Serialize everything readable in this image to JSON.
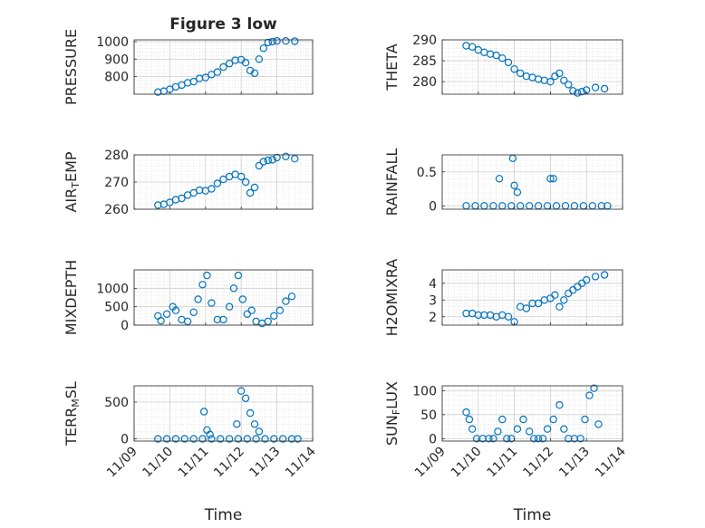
{
  "chart_data": [
    {
      "type": "scatter",
      "title": "Figure 3 low",
      "ylabel": "PRESSURE",
      "ylim": [
        700,
        1010
      ],
      "yticks": [
        800,
        900,
        1000
      ],
      "xlim": [
        "11/09",
        "11/14"
      ],
      "x": [
        "11/09 16:00",
        "11/09 20:00",
        "11/10 00:00",
        "11/10 04:00",
        "11/10 08:00",
        "11/10 12:00",
        "11/10 16:00",
        "11/10 20:00",
        "11/11 00:00",
        "11/11 04:00",
        "11/11 08:00",
        "11/11 12:00",
        "11/11 16:00",
        "11/11 20:00",
        "11/12 00:00",
        "11/12 03:00",
        "11/12 06:00",
        "11/12 09:00",
        "11/12 12:00",
        "11/12 15:00",
        "11/12 18:00",
        "11/12 21:00",
        "11/13 00:00",
        "11/13 06:00",
        "11/13 12:00"
      ],
      "y": [
        712,
        717,
        728,
        742,
        752,
        765,
        772,
        790,
        795,
        812,
        826,
        855,
        875,
        893,
        897,
        880,
        835,
        820,
        900,
        962,
        995,
        1000,
        1004,
        1004,
        1002
      ],
      "color": "#0072BD"
    },
    {
      "type": "scatter",
      "ylabel": "THETA",
      "ylim": [
        277,
        290
      ],
      "yticks": [
        280,
        285,
        290
      ],
      "xlim": [
        "11/09",
        "11/14"
      ],
      "x": [
        "11/09 16:00",
        "11/09 20:00",
        "11/10 00:00",
        "11/10 04:00",
        "11/10 08:00",
        "11/10 12:00",
        "11/10 16:00",
        "11/10 20:00",
        "11/11 00:00",
        "11/11 04:00",
        "11/11 08:00",
        "11/11 12:00",
        "11/11 16:00",
        "11/11 20:00",
        "11/12 00:00",
        "11/12 03:00",
        "11/12 06:00",
        "11/12 09:00",
        "11/12 12:00",
        "11/12 15:00",
        "11/12 18:00",
        "11/12 21:00",
        "11/13 00:00",
        "11/13 06:00",
        "11/13 12:00"
      ],
      "y": [
        288.6,
        288.3,
        287.6,
        287.0,
        286.6,
        286.3,
        285.6,
        284.6,
        283.0,
        282.0,
        281.3,
        281.0,
        280.6,
        280.3,
        280.0,
        281.3,
        282.0,
        280.3,
        279.3,
        277.8,
        277.3,
        277.6,
        278.0,
        278.6,
        278.3
      ],
      "color": "#0072BD"
    },
    {
      "type": "scatter",
      "ylabel": "AIR_TEMP",
      "ylim": [
        260,
        280
      ],
      "yticks": [
        260,
        270,
        280
      ],
      "xlim": [
        "11/09",
        "11/14"
      ],
      "x": [
        "11/09 16:00",
        "11/09 20:00",
        "11/10 00:00",
        "11/10 04:00",
        "11/10 08:00",
        "11/10 12:00",
        "11/10 16:00",
        "11/10 20:00",
        "11/11 00:00",
        "11/11 04:00",
        "11/11 08:00",
        "11/11 12:00",
        "11/11 16:00",
        "11/11 20:00",
        "11/12 00:00",
        "11/12 03:00",
        "11/12 06:00",
        "11/12 09:00",
        "11/12 12:00",
        "11/12 15:00",
        "11/12 18:00",
        "11/12 21:00",
        "11/13 00:00",
        "11/13 06:00",
        "11/13 12:00"
      ],
      "y": [
        261.5,
        261.8,
        262.5,
        263.5,
        264.0,
        265.2,
        266.0,
        267.0,
        266.8,
        267.5,
        269.5,
        271.0,
        272.0,
        272.8,
        272.0,
        270.0,
        266.0,
        268.0,
        276.0,
        277.5,
        278.0,
        278.2,
        279.0,
        279.4,
        278.6
      ],
      "color": "#0072BD"
    },
    {
      "type": "scatter",
      "ylabel": "RAINFALL",
      "ylim": [
        -0.05,
        0.75
      ],
      "yticks": [
        0,
        0.5
      ],
      "xlim": [
        "11/09",
        "11/14"
      ],
      "x": [
        "11/09 16:00",
        "11/09 22:00",
        "11/10 04:00",
        "11/10 10:00",
        "11/10 16:00",
        "11/10 22:00",
        "11/11 04:00",
        "11/11 10:00",
        "11/11 16:00",
        "11/11 22:00",
        "11/12 04:00",
        "11/12 10:00",
        "11/12 16:00",
        "11/12 22:00",
        "11/13 04:00",
        "11/13 10:00",
        "11/13 14:00",
        "11/10 14:00",
        "11/10 23:00",
        "11/11 00:00",
        "11/11 02:00",
        "11/12 00:00",
        "11/12 02:00"
      ],
      "y": [
        0,
        0,
        0,
        0,
        0,
        0,
        0,
        0,
        0,
        0,
        0,
        0,
        0,
        0,
        0,
        0,
        0,
        0.4,
        0.7,
        0.3,
        0.2,
        0.4,
        0.4
      ],
      "color": "#0072BD"
    },
    {
      "type": "scatter",
      "ylabel": "MIXDEPTH",
      "ylim": [
        0,
        1500
      ],
      "yticks": [
        0,
        500,
        1000
      ],
      "xlim": [
        "11/09",
        "11/14"
      ],
      "x": [
        "11/09 16:00",
        "11/09 18:00",
        "11/09 22:00",
        "11/10 02:00",
        "11/10 04:00",
        "11/10 08:00",
        "11/10 12:00",
        "11/10 16:00",
        "11/10 19:00",
        "11/10 22:00",
        "11/11 01:00",
        "11/11 04:00",
        "11/11 08:00",
        "11/11 12:00",
        "11/11 16:00",
        "11/11 19:00",
        "11/11 22:00",
        "11/12 01:00",
        "11/12 04:00",
        "11/12 07:00",
        "11/12 10:00",
        "11/12 14:00",
        "11/12 18:00",
        "11/12 22:00",
        "11/13 02:00",
        "11/13 06:00",
        "11/13 10:00"
      ],
      "y": [
        250,
        120,
        300,
        500,
        400,
        150,
        100,
        350,
        700,
        1100,
        1350,
        600,
        150,
        150,
        500,
        1000,
        1350,
        700,
        300,
        400,
        100,
        50,
        100,
        250,
        400,
        650,
        780
      ],
      "color": "#0072BD"
    },
    {
      "type": "scatter",
      "ylabel": "H2OMIXRA",
      "ylim": [
        1.5,
        4.8
      ],
      "yticks": [
        2,
        3,
        4
      ],
      "xlim": [
        "11/09",
        "11/14"
      ],
      "x": [
        "11/09 16:00",
        "11/09 20:00",
        "11/10 00:00",
        "11/10 04:00",
        "11/10 08:00",
        "11/10 12:00",
        "11/10 16:00",
        "11/10 20:00",
        "11/11 00:00",
        "11/11 04:00",
        "11/11 08:00",
        "11/11 12:00",
        "11/11 16:00",
        "11/11 20:00",
        "11/12 00:00",
        "11/12 03:00",
        "11/12 06:00",
        "11/12 09:00",
        "11/12 12:00",
        "11/12 15:00",
        "11/12 18:00",
        "11/12 21:00",
        "11/13 00:00",
        "11/13 06:00",
        "11/13 12:00"
      ],
      "y": [
        2.2,
        2.2,
        2.1,
        2.1,
        2.1,
        2.0,
        2.1,
        2.0,
        1.7,
        2.6,
        2.5,
        2.8,
        2.8,
        3.0,
        3.1,
        3.3,
        2.6,
        3.0,
        3.4,
        3.6,
        3.8,
        4.0,
        4.2,
        4.4,
        4.5
      ],
      "color": "#0072BD"
    },
    {
      "type": "scatter",
      "ylabel": "TERR_MSL",
      "ylim": [
        -30,
        720
      ],
      "yticks": [
        0,
        500
      ],
      "xlim": [
        "11/09",
        "11/14"
      ],
      "xlabel": "Time",
      "xticks": [
        "11/09",
        "11/10",
        "11/11",
        "11/12",
        "11/13",
        "11/14"
      ],
      "x": [
        "11/09 16:00",
        "11/09 22:00",
        "11/10 04:00",
        "11/10 10:00",
        "11/10 16:00",
        "11/10 22:00",
        "11/11 04:00",
        "11/11 10:00",
        "11/11 16:00",
        "11/11 22:00",
        "11/12 04:00",
        "11/12 10:00",
        "11/12 16:00",
        "11/12 22:00",
        "11/13 04:00",
        "11/13 10:00",
        "11/13 14:00",
        "11/10 23:00",
        "11/11 01:00",
        "11/11 03:00",
        "11/11 21:00",
        "11/12 00:00",
        "11/12 03:00",
        "11/12 06:00",
        "11/12 09:00",
        "11/12 12:00"
      ],
      "y": [
        0,
        0,
        0,
        0,
        0,
        0,
        0,
        0,
        0,
        0,
        0,
        0,
        0,
        0,
        0,
        0,
        0,
        370,
        120,
        60,
        200,
        650,
        550,
        350,
        200,
        100
      ],
      "color": "#0072BD"
    },
    {
      "type": "scatter",
      "ylabel": "SUN_FLUX",
      "ylim": [
        -5,
        110
      ],
      "yticks": [
        0,
        50,
        100
      ],
      "xlim": [
        "11/09",
        "11/14"
      ],
      "xlabel": "Time",
      "xticks": [
        "11/09",
        "11/10",
        "11/11",
        "11/12",
        "11/13",
        "11/14"
      ],
      "x": [
        "11/09 16:00",
        "11/09 18:00",
        "11/09 20:00",
        "11/09 23:00",
        "11/10 03:00",
        "11/10 07:00",
        "11/10 10:00",
        "11/10 13:00",
        "11/10 16:00",
        "11/10 19:00",
        "11/10 22:00",
        "11/11 02:00",
        "11/11 06:00",
        "11/11 10:00",
        "11/11 13:00",
        "11/11 16:00",
        "11/11 19:00",
        "11/11 22:00",
        "11/12 02:00",
        "11/12 06:00",
        "11/12 09:00",
        "11/12 12:00",
        "11/12 16:00",
        "11/12 20:00",
        "11/12 23:00",
        "11/13 02:00",
        "11/13 05:00",
        "11/13 08:00"
      ],
      "y": [
        55,
        40,
        20,
        0,
        0,
        0,
        0,
        15,
        40,
        0,
        0,
        20,
        40,
        15,
        0,
        0,
        0,
        20,
        40,
        70,
        20,
        0,
        0,
        0,
        40,
        90,
        105,
        30
      ],
      "color": "#0072BD"
    }
  ]
}
